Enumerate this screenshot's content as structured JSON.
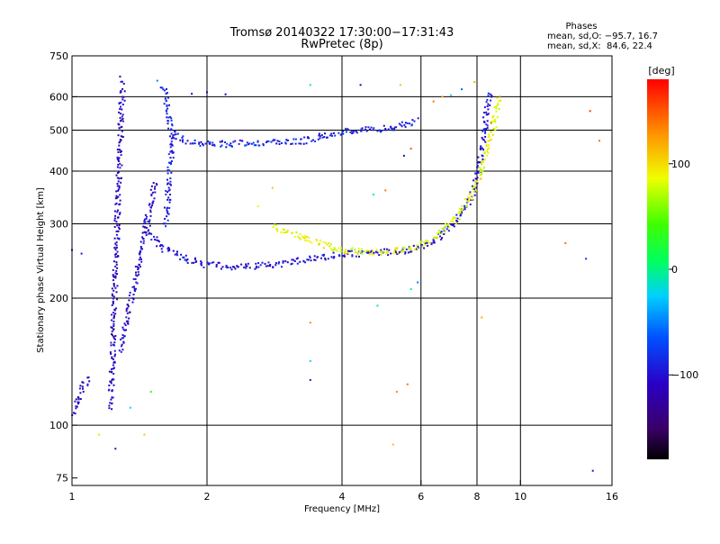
{
  "chart_data": {
    "type": "scatter",
    "title": "Tromsø 20140322 17:30:00−17:31:43",
    "subtitle": "RwPretec (8p)",
    "stats": {
      "heading": "Phases",
      "line_o": "mean, sd,O: −95.7, 16.7",
      "line_x": "mean, sd,X:  84.6, 22.4"
    },
    "xlabel": "Frequency [MHz]",
    "ylabel": "Stationary phase Virtual Height [km]",
    "x_scale": "log",
    "y_scale": "log",
    "xlim": [
      1,
      16
    ],
    "ylim": [
      72,
      750
    ],
    "x_ticks": [
      {
        "value": 1,
        "label": "1"
      },
      {
        "value": 2,
        "label": "2"
      },
      {
        "value": 4,
        "label": "4"
      },
      {
        "value": 6,
        "label": "6"
      },
      {
        "value": 8,
        "label": "8"
      },
      {
        "value": 10,
        "label": "10"
      },
      {
        "value": 16,
        "label": "16"
      }
    ],
    "y_ticks": [
      {
        "value": 75,
        "label": "75"
      },
      {
        "value": 100,
        "label": "100"
      },
      {
        "value": 200,
        "label": "200"
      },
      {
        "value": 300,
        "label": "300"
      },
      {
        "value": 400,
        "label": "400"
      },
      {
        "value": 500,
        "label": "500"
      },
      {
        "value": 600,
        "label": "600"
      },
      {
        "value": 750,
        "label": "750"
      }
    ],
    "x_grid": [
      1,
      2,
      4,
      6,
      8,
      10
    ],
    "y_grid": [
      100,
      200,
      300,
      400,
      500,
      600
    ],
    "grid": true,
    "colorbar": {
      "label": "[deg]",
      "range": [
        -180,
        180
      ],
      "ticks": [
        {
          "value": 100,
          "label": "100"
        },
        {
          "value": 0,
          "label": "0"
        },
        {
          "value": -100,
          "label": "−100"
        }
      ]
    },
    "traces": [
      {
        "name": "",
        "phase": -90,
        "points": [
          [
            1.6,
            640
          ],
          [
            1.62,
            600
          ],
          [
            1.63,
            560
          ],
          [
            1.65,
            520
          ],
          [
            1.68,
            500
          ],
          [
            1.7,
            485
          ],
          [
            1.8,
            472
          ],
          [
            1.9,
            468
          ],
          [
            2.0,
            465
          ],
          [
            2.2,
            463
          ],
          [
            2.4,
            465
          ],
          [
            2.6,
            467
          ],
          [
            2.8,
            466
          ],
          [
            3.0,
            468
          ],
          [
            3.2,
            470
          ],
          [
            3.4,
            475
          ],
          [
            3.6,
            483
          ],
          [
            3.8,
            490
          ],
          [
            4.0,
            494
          ],
          [
            4.2,
            497
          ],
          [
            4.5,
            500
          ],
          [
            4.8,
            503
          ],
          [
            5.0,
            505
          ],
          [
            5.3,
            510
          ],
          [
            5.5,
            515
          ],
          [
            5.7,
            520
          ],
          [
            5.9,
            528
          ]
        ]
      },
      {
        "name": "",
        "phase": -100,
        "points": [
          [
            1.45,
            300
          ],
          [
            1.5,
            285
          ],
          [
            1.55,
            270
          ],
          [
            1.6,
            262
          ],
          [
            1.7,
            255
          ],
          [
            1.8,
            248
          ],
          [
            1.9,
            243
          ],
          [
            2.0,
            240
          ],
          [
            2.2,
            238
          ],
          [
            2.4,
            237
          ],
          [
            2.6,
            238
          ],
          [
            2.8,
            240
          ],
          [
            3.0,
            242
          ],
          [
            3.2,
            245
          ],
          [
            3.4,
            248
          ],
          [
            3.6,
            250
          ],
          [
            3.8,
            252
          ],
          [
            4.0,
            254
          ],
          [
            4.3,
            255
          ],
          [
            4.6,
            256
          ],
          [
            5.0,
            257
          ],
          [
            5.3,
            258
          ],
          [
            5.6,
            260
          ],
          [
            5.9,
            263
          ],
          [
            6.2,
            268
          ],
          [
            6.5,
            276
          ],
          [
            6.8,
            288
          ],
          [
            7.1,
            300
          ],
          [
            7.4,
            318
          ],
          [
            7.7,
            342
          ],
          [
            7.9,
            365
          ],
          [
            8.05,
            395
          ],
          [
            8.15,
            430
          ],
          [
            8.25,
            470
          ],
          [
            8.35,
            520
          ],
          [
            8.45,
            570
          ],
          [
            8.55,
            620
          ]
        ]
      },
      {
        "name": "",
        "phase": 85,
        "points": [
          [
            2.8,
            296
          ],
          [
            3.0,
            288
          ],
          [
            3.2,
            280
          ],
          [
            3.4,
            274
          ],
          [
            3.6,
            268
          ],
          [
            3.8,
            263
          ],
          [
            4.0,
            260
          ],
          [
            4.3,
            258
          ],
          [
            4.6,
            257
          ],
          [
            5.0,
            258
          ],
          [
            5.3,
            260
          ],
          [
            5.6,
            262
          ],
          [
            5.9,
            266
          ],
          [
            6.2,
            272
          ],
          [
            6.5,
            280
          ],
          [
            6.8,
            292
          ],
          [
            7.1,
            305
          ],
          [
            7.4,
            322
          ],
          [
            7.7,
            345
          ],
          [
            8.0,
            375
          ],
          [
            8.2,
            405
          ],
          [
            8.4,
            440
          ],
          [
            8.6,
            480
          ],
          [
            8.75,
            520
          ],
          [
            8.85,
            560
          ],
          [
            8.95,
            600
          ]
        ]
      },
      {
        "name": "",
        "phase": -110,
        "points": [
          [
            1.22,
            110
          ],
          [
            1.23,
            140
          ],
          [
            1.24,
            180
          ],
          [
            1.25,
            230
          ],
          [
            1.26,
            290
          ],
          [
            1.27,
            370
          ],
          [
            1.28,
            460
          ],
          [
            1.29,
            560
          ],
          [
            1.3,
            650
          ]
        ]
      },
      {
        "name": "",
        "phase": -105,
        "points": [
          [
            1.28,
            150
          ],
          [
            1.3,
            160
          ],
          [
            1.32,
            175
          ],
          [
            1.34,
            188
          ],
          [
            1.36,
            200
          ],
          [
            1.38,
            215
          ],
          [
            1.4,
            232
          ],
          [
            1.42,
            250
          ],
          [
            1.44,
            270
          ],
          [
            1.46,
            292
          ],
          [
            1.48,
            315
          ],
          [
            1.5,
            340
          ],
          [
            1.52,
            360
          ],
          [
            1.54,
            380
          ]
        ]
      },
      {
        "name": "",
        "phase": -110,
        "points": [
          [
            1.0,
            105
          ],
          [
            1.03,
            115
          ],
          [
            1.06,
            125
          ],
          [
            1.1,
            130
          ]
        ]
      },
      {
        "name": "",
        "phase": -95,
        "points": [
          [
            1.62,
            300
          ],
          [
            1.63,
            330
          ],
          [
            1.64,
            360
          ],
          [
            1.65,
            390
          ],
          [
            1.66,
            420
          ],
          [
            1.67,
            460
          ],
          [
            1.68,
            500
          ]
        ]
      }
    ],
    "scattered": [
      {
        "x": 1.28,
        "y": 670,
        "phase": -120
      },
      {
        "x": 1.3,
        "y": 575,
        "phase": -110
      },
      {
        "x": 1.0,
        "y": 260,
        "phase": -90
      },
      {
        "x": 1.05,
        "y": 255,
        "phase": -95
      },
      {
        "x": 1.15,
        "y": 95,
        "phase": 100
      },
      {
        "x": 1.25,
        "y": 88,
        "phase": -100
      },
      {
        "x": 1.45,
        "y": 95,
        "phase": 110
      },
      {
        "x": 1.5,
        "y": 120,
        "phase": 30
      },
      {
        "x": 1.35,
        "y": 110,
        "phase": -20
      },
      {
        "x": 1.55,
        "y": 655,
        "phase": -50
      },
      {
        "x": 1.85,
        "y": 610,
        "phase": -110
      },
      {
        "x": 2.0,
        "y": 615,
        "phase": -110
      },
      {
        "x": 2.2,
        "y": 608,
        "phase": -110
      },
      {
        "x": 2.8,
        "y": 365,
        "phase": 110
      },
      {
        "x": 2.6,
        "y": 330,
        "phase": 80
      },
      {
        "x": 3.4,
        "y": 640,
        "phase": -10
      },
      {
        "x": 4.4,
        "y": 640,
        "phase": -120
      },
      {
        "x": 5.4,
        "y": 640,
        "phase": 110
      },
      {
        "x": 3.4,
        "y": 175,
        "phase": 130
      },
      {
        "x": 3.4,
        "y": 142,
        "phase": -20
      },
      {
        "x": 3.4,
        "y": 128,
        "phase": -100
      },
      {
        "x": 4.8,
        "y": 192,
        "phase": -10
      },
      {
        "x": 5.6,
        "y": 125,
        "phase": 140
      },
      {
        "x": 5.3,
        "y": 120,
        "phase": 130
      },
      {
        "x": 5.2,
        "y": 90,
        "phase": 110
      },
      {
        "x": 5.7,
        "y": 210,
        "phase": 0
      },
      {
        "x": 5.9,
        "y": 218,
        "phase": -50
      },
      {
        "x": 5.7,
        "y": 452,
        "phase": 150
      },
      {
        "x": 5.5,
        "y": 435,
        "phase": -140
      },
      {
        "x": 5.0,
        "y": 360,
        "phase": 140
      },
      {
        "x": 4.7,
        "y": 352,
        "phase": -10
      },
      {
        "x": 6.4,
        "y": 585,
        "phase": 140
      },
      {
        "x": 6.7,
        "y": 600,
        "phase": 120
      },
      {
        "x": 7.0,
        "y": 605,
        "phase": -20
      },
      {
        "x": 7.4,
        "y": 625,
        "phase": -60
      },
      {
        "x": 7.9,
        "y": 650,
        "phase": 120
      },
      {
        "x": 8.2,
        "y": 180,
        "phase": 120
      },
      {
        "x": 8.6,
        "y": 520,
        "phase": 150
      },
      {
        "x": 9.0,
        "y": 600,
        "phase": 140
      },
      {
        "x": 12.6,
        "y": 270,
        "phase": 140
      },
      {
        "x": 14.3,
        "y": 555,
        "phase": 160
      },
      {
        "x": 15.0,
        "y": 472,
        "phase": 140
      },
      {
        "x": 14.0,
        "y": 248,
        "phase": -80
      },
      {
        "x": 14.5,
        "y": 78,
        "phase": -100
      }
    ]
  }
}
